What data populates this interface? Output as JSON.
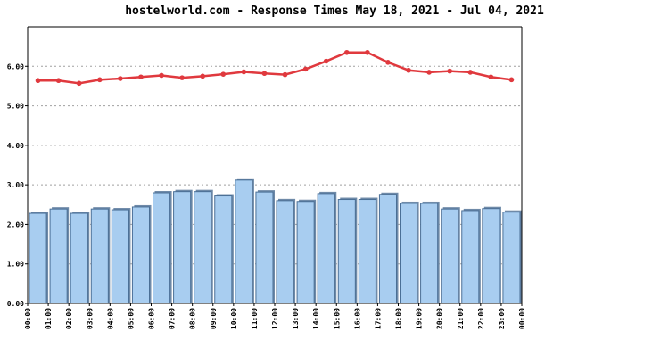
{
  "chart_data": {
    "type": "bar",
    "title": "hostelworld.com - Response Times May 18, 2021 - Jul 04, 2021",
    "xlabel": "",
    "ylabel": "",
    "ylim": [
      0,
      7
    ],
    "y_ticks": [
      "0.00",
      "1.00",
      "2.00",
      "3.00",
      "4.00",
      "5.00",
      "6.00"
    ],
    "y_tick_values": [
      0,
      1,
      2,
      3,
      4,
      5,
      6
    ],
    "x_ticks": [
      "00:00",
      "01:00",
      "02:00",
      "03:00",
      "04:00",
      "05:00",
      "06:00",
      "07:00",
      "08:00",
      "09:00",
      "10:00",
      "11:00",
      "12:00",
      "13:00",
      "14:00",
      "15:00",
      "16:00",
      "17:00",
      "18:00",
      "19:00",
      "20:00",
      "21:00",
      "22:00",
      "23:00",
      "00:00"
    ],
    "grid": "horizontal dotted",
    "series": [
      {
        "type": "bar",
        "color": "#a8cdf0",
        "values": [
          2.28,
          2.39,
          2.28,
          2.39,
          2.37,
          2.44,
          2.8,
          2.83,
          2.83,
          2.72,
          3.12,
          2.82,
          2.6,
          2.58,
          2.78,
          2.63,
          2.63,
          2.76,
          2.53,
          2.53,
          2.39,
          2.35,
          2.4,
          2.31
        ]
      },
      {
        "type": "line",
        "color": "#e0393e",
        "values": [
          5.64,
          5.64,
          5.57,
          5.66,
          5.69,
          5.73,
          5.77,
          5.71,
          5.75,
          5.8,
          5.86,
          5.82,
          5.79,
          5.93,
          6.13,
          6.35,
          6.35,
          6.1,
          5.9,
          5.85,
          5.88,
          5.85,
          5.73,
          5.66
        ]
      }
    ]
  }
}
